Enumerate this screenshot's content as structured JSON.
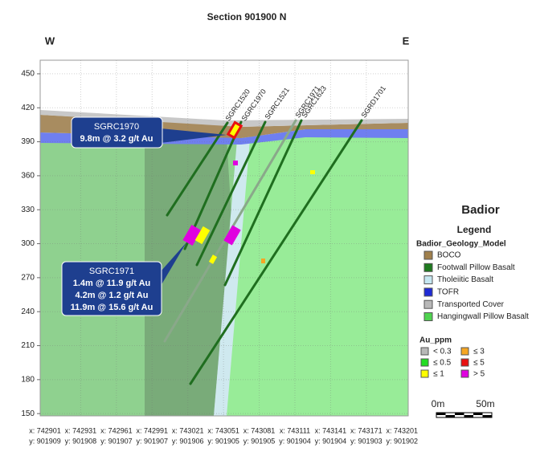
{
  "title": "Section 901900 N",
  "directions": [
    "W",
    "E"
  ],
  "yaxis": {
    "ylim": [
      148,
      462
    ],
    "yticks": [
      150,
      180,
      210,
      240,
      270,
      300,
      330,
      360,
      390,
      420,
      450
    ]
  },
  "xticks": [
    {
      "x": "x: 742901",
      "y": "y: 901909"
    },
    {
      "x": "x: 742931",
      "y": "y: 901908"
    },
    {
      "x": "x: 742961",
      "y": "y: 901907"
    },
    {
      "x": "x: 742991",
      "y": "y: 901907"
    },
    {
      "x": "x: 743021",
      "y": "y: 901906"
    },
    {
      "x": "x: 743051",
      "y": "y: 901905"
    },
    {
      "x": "x: 743081",
      "y": "y: 901905"
    },
    {
      "x": "x: 743111",
      "y": "y: 901904"
    },
    {
      "x": "x: 743141",
      "y": "y: 901904"
    },
    {
      "x": "x: 743171",
      "y": "y: 901903"
    },
    {
      "x": "x: 743201",
      "y": "y: 901902"
    }
  ],
  "holes": [
    "SGRC1520",
    "SGRC1970",
    "SGRC1521",
    "SGRC1971",
    "SGRC1623",
    "SGRD1701"
  ],
  "callouts": [
    {
      "title": "SGRC1970",
      "lines": [
        "9.8m @ 3.2 g/t Au"
      ]
    },
    {
      "title": "SGRC1971",
      "lines": [
        "1.4m @ 11.9 g/t Au",
        "4.2m @ 1.2 g/t Au",
        "11.9m @ 15.6 g/t Au"
      ]
    }
  ],
  "legend": {
    "name": "Badior",
    "heading": "Legend",
    "model": "Badior_Geology_Model",
    "units": [
      {
        "label": "BOCO",
        "color": "#a0804c"
      },
      {
        "label": "Footwall Pillow Basalt",
        "color": "#1f7a1f"
      },
      {
        "label": "Tholeiitic Basalt",
        "color": "#c6e8f2"
      },
      {
        "label": "TOFR",
        "color": "#1f2bd6"
      },
      {
        "label": "Transported Cover",
        "color": "#b8b8b8"
      },
      {
        "label": "Hangingwall Pillow Basalt",
        "color": "#4fd34f"
      }
    ],
    "assay": "Au_ppm",
    "grades": [
      {
        "label": "< 0.3",
        "color": "#b8b8b8"
      },
      {
        "label": "≤ 3",
        "color": "#f5a623"
      },
      {
        "label": "≤ 0.5",
        "color": "#22dd22"
      },
      {
        "label": "≤ 5",
        "color": "#e81010"
      },
      {
        "label": "≤ 1",
        "color": "#ffff00"
      },
      {
        "label": "> 5",
        "color": "#e000e0"
      }
    ]
  },
  "scale": {
    "start": "0m",
    "end": "50m"
  }
}
